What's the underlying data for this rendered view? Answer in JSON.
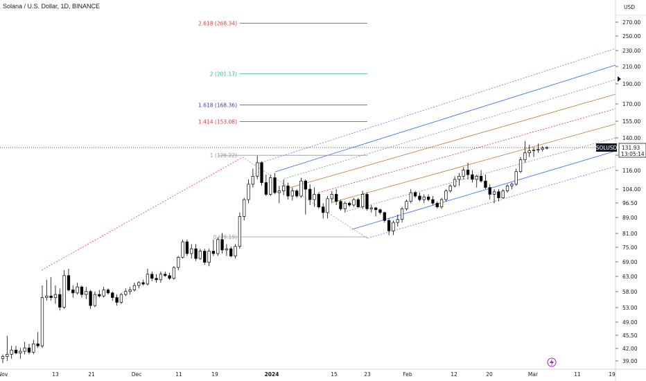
{
  "header": {
    "title": "Solana / U.S. Dollar, 1D, BINANCE"
  },
  "price_axis": {
    "currency": "USD",
    "ticks": [
      "270.00",
      "250.00",
      "230.00",
      "210.00",
      "190.00",
      "170.00",
      "155.00",
      "140.00",
      "126.00",
      "116.00",
      "104.00",
      "96.50",
      "89.00",
      "81.00",
      "75.00",
      "69.00",
      "63.00",
      "58.00",
      "53.00",
      "49.00",
      "45.50",
      "42.00",
      "39.00"
    ],
    "last_price": "131.93",
    "countdown": "13:05:14",
    "symbol": "SOLUSD"
  },
  "time_axis": {
    "labels": [
      "Nov",
      "13",
      "21",
      "Dec",
      "11",
      "19",
      "2024",
      "15",
      "23",
      "Feb",
      "12",
      "20",
      "Mar",
      "11",
      "19"
    ]
  },
  "fib_levels": [
    {
      "label": "2.618 (268.34)",
      "color": "#e53935"
    },
    {
      "label": "2 (201.17)",
      "color": "#26c281"
    },
    {
      "label": "1.618 (168.36)",
      "color": "#3f3fa0"
    },
    {
      "label": "1.414 (153.08)",
      "color": "#e53935"
    },
    {
      "label": "1 (126.22)",
      "color": "#9598a1"
    },
    {
      "label": "0 (79.19)",
      "color": "#9598a1"
    }
  ],
  "colors": {
    "bull": "#ffffff",
    "bear": "#000000",
    "channel_outer": "#7b61ff",
    "channel_red": "#f23645",
    "channel_blue": "#2962ff",
    "channel_brown": "#c07b24",
    "channel_green": "#4caf50",
    "channel_pink": "#e91e63",
    "lightning": "#9c27b0"
  },
  "icons": {
    "lightning": "lightning-icon",
    "collapse": "arrow-right-icon"
  },
  "chart_data": {
    "type": "candlestick",
    "title": "Solana / U.S. Dollar, 1D, BINANCE",
    "symbol": "SOLUSD",
    "last_price": 131.93,
    "y_scale": "log",
    "ylim": [
      37,
      300
    ],
    "x_start": "2023-11-01",
    "x_end": "2024-03-19",
    "fib_extension": {
      "level_0": 79.19,
      "level_1": 126.22,
      "level_1_414": 153.08,
      "level_1_618": 168.36,
      "level_2": 201.17,
      "level_2_618": 268.34
    },
    "candles": [
      {
        "d": "2023-11-01",
        "o": 39.5,
        "h": 40.5,
        "l": 38.5,
        "c": 40.0
      },
      {
        "d": "2023-11-02",
        "o": 40.0,
        "h": 45.0,
        "l": 39.0,
        "c": 40.5
      },
      {
        "d": "2023-11-03",
        "o": 40.5,
        "h": 42.5,
        "l": 39.5,
        "c": 41.5
      },
      {
        "d": "2023-11-04",
        "o": 41.5,
        "h": 42.5,
        "l": 40.5,
        "c": 40.8
      },
      {
        "d": "2023-11-05",
        "o": 40.8,
        "h": 42.0,
        "l": 39.5,
        "c": 41.2
      },
      {
        "d": "2023-11-06",
        "o": 41.2,
        "h": 43.5,
        "l": 40.5,
        "c": 42.0
      },
      {
        "d": "2023-11-07",
        "o": 42.0,
        "h": 43.0,
        "l": 40.5,
        "c": 41.0
      },
      {
        "d": "2023-11-08",
        "o": 41.0,
        "h": 44.0,
        "l": 40.5,
        "c": 43.0
      },
      {
        "d": "2023-11-09",
        "o": 43.0,
        "h": 46.0,
        "l": 42.0,
        "c": 42.5
      },
      {
        "d": "2023-11-10",
        "o": 42.5,
        "h": 60.0,
        "l": 42.0,
        "c": 56.0
      },
      {
        "d": "2023-11-11",
        "o": 56.0,
        "h": 62.0,
        "l": 55.0,
        "c": 56.5
      },
      {
        "d": "2023-11-12",
        "o": 56.5,
        "h": 63.0,
        "l": 55.0,
        "c": 56.0
      },
      {
        "d": "2023-11-13",
        "o": 56.0,
        "h": 60.0,
        "l": 54.0,
        "c": 57.0
      },
      {
        "d": "2023-11-14",
        "o": 57.0,
        "h": 59.0,
        "l": 52.0,
        "c": 53.0
      },
      {
        "d": "2023-11-15",
        "o": 53.0,
        "h": 65.5,
        "l": 52.5,
        "c": 63.5
      },
      {
        "d": "2023-11-16",
        "o": 63.5,
        "h": 66.0,
        "l": 58.0,
        "c": 58.5
      },
      {
        "d": "2023-11-17",
        "o": 58.5,
        "h": 60.0,
        "l": 56.0,
        "c": 57.5
      },
      {
        "d": "2023-11-18",
        "o": 57.5,
        "h": 61.0,
        "l": 57.0,
        "c": 59.5
      },
      {
        "d": "2023-11-19",
        "o": 59.5,
        "h": 60.0,
        "l": 56.0,
        "c": 57.0
      },
      {
        "d": "2023-11-20",
        "o": 57.0,
        "h": 59.5,
        "l": 55.5,
        "c": 58.0
      },
      {
        "d": "2023-11-21",
        "o": 58.0,
        "h": 58.5,
        "l": 52.5,
        "c": 53.5
      },
      {
        "d": "2023-11-22",
        "o": 53.5,
        "h": 58.0,
        "l": 53.0,
        "c": 57.0
      },
      {
        "d": "2023-11-23",
        "o": 57.0,
        "h": 58.5,
        "l": 56.0,
        "c": 56.5
      },
      {
        "d": "2023-11-24",
        "o": 56.5,
        "h": 59.5,
        "l": 56.0,
        "c": 58.5
      },
      {
        "d": "2023-11-25",
        "o": 58.5,
        "h": 59.0,
        "l": 57.0,
        "c": 57.5
      },
      {
        "d": "2023-11-26",
        "o": 57.5,
        "h": 58.0,
        "l": 55.0,
        "c": 56.0
      },
      {
        "d": "2023-11-27",
        "o": 56.0,
        "h": 57.0,
        "l": 53.5,
        "c": 54.5
      },
      {
        "d": "2023-11-28",
        "o": 54.5,
        "h": 57.5,
        "l": 54.0,
        "c": 57.0
      },
      {
        "d": "2023-11-29",
        "o": 57.0,
        "h": 59.0,
        "l": 56.5,
        "c": 58.0
      },
      {
        "d": "2023-11-30",
        "o": 58.0,
        "h": 59.5,
        "l": 57.0,
        "c": 58.5
      },
      {
        "d": "2023-12-01",
        "o": 58.5,
        "h": 61.0,
        "l": 58.0,
        "c": 60.0
      },
      {
        "d": "2023-12-02",
        "o": 60.0,
        "h": 61.5,
        "l": 59.0,
        "c": 61.0
      },
      {
        "d": "2023-12-03",
        "o": 61.0,
        "h": 62.0,
        "l": 60.0,
        "c": 60.5
      },
      {
        "d": "2023-12-04",
        "o": 60.5,
        "h": 66.0,
        "l": 60.0,
        "c": 64.0
      },
      {
        "d": "2023-12-05",
        "o": 64.0,
        "h": 65.0,
        "l": 61.5,
        "c": 62.5
      },
      {
        "d": "2023-12-06",
        "o": 62.5,
        "h": 64.0,
        "l": 61.0,
        "c": 62.0
      },
      {
        "d": "2023-12-07",
        "o": 62.0,
        "h": 65.0,
        "l": 61.0,
        "c": 64.0
      },
      {
        "d": "2023-12-08",
        "o": 64.0,
        "h": 65.0,
        "l": 63.0,
        "c": 63.5
      },
      {
        "d": "2023-12-09",
        "o": 63.5,
        "h": 64.5,
        "l": 62.0,
        "c": 62.5
      },
      {
        "d": "2023-12-10",
        "o": 62.5,
        "h": 67.0,
        "l": 62.0,
        "c": 66.5
      },
      {
        "d": "2023-12-11",
        "o": 66.5,
        "h": 71.0,
        "l": 65.5,
        "c": 70.5
      },
      {
        "d": "2023-12-12",
        "o": 70.5,
        "h": 78.0,
        "l": 70.0,
        "c": 77.0
      },
      {
        "d": "2023-12-13",
        "o": 77.0,
        "h": 78.0,
        "l": 71.0,
        "c": 72.0
      },
      {
        "d": "2023-12-14",
        "o": 72.0,
        "h": 76.0,
        "l": 70.0,
        "c": 74.0
      },
      {
        "d": "2023-12-15",
        "o": 74.0,
        "h": 76.0,
        "l": 69.0,
        "c": 70.0
      },
      {
        "d": "2023-12-16",
        "o": 70.0,
        "h": 74.0,
        "l": 69.5,
        "c": 73.0
      },
      {
        "d": "2023-12-17",
        "o": 73.0,
        "h": 74.0,
        "l": 67.5,
        "c": 68.5
      },
      {
        "d": "2023-12-18",
        "o": 68.5,
        "h": 74.0,
        "l": 67.0,
        "c": 73.0
      },
      {
        "d": "2023-12-19",
        "o": 73.0,
        "h": 78.0,
        "l": 71.0,
        "c": 72.0
      },
      {
        "d": "2023-12-20",
        "o": 72.0,
        "h": 79.0,
        "l": 71.0,
        "c": 78.0
      },
      {
        "d": "2023-12-21",
        "o": 78.0,
        "h": 81.0,
        "l": 72.0,
        "c": 73.5
      },
      {
        "d": "2023-12-22",
        "o": 73.5,
        "h": 76.0,
        "l": 71.0,
        "c": 74.0
      },
      {
        "d": "2023-12-23",
        "o": 74.0,
        "h": 75.0,
        "l": 70.5,
        "c": 71.0
      },
      {
        "d": "2023-12-24",
        "o": 71.0,
        "h": 76.0,
        "l": 70.0,
        "c": 75.0
      },
      {
        "d": "2023-12-25",
        "o": 75.0,
        "h": 91.0,
        "l": 74.0,
        "c": 89.0
      },
      {
        "d": "2023-12-26",
        "o": 89.0,
        "h": 99.0,
        "l": 87.0,
        "c": 98.0
      },
      {
        "d": "2023-12-27",
        "o": 98.0,
        "h": 110.0,
        "l": 96.0,
        "c": 107.0
      },
      {
        "d": "2023-12-28",
        "o": 107.0,
        "h": 117.0,
        "l": 105.0,
        "c": 112.0
      },
      {
        "d": "2023-12-29",
        "o": 112.0,
        "h": 126.0,
        "l": 110.0,
        "c": 121.0
      },
      {
        "d": "2023-12-30",
        "o": 121.0,
        "h": 122.0,
        "l": 106.0,
        "c": 108.0
      },
      {
        "d": "2023-12-31",
        "o": 108.0,
        "h": 113.0,
        "l": 100.0,
        "c": 101.0
      },
      {
        "d": "2024-01-01",
        "o": 101.0,
        "h": 113.0,
        "l": 100.0,
        "c": 111.0
      },
      {
        "d": "2024-01-02",
        "o": 111.0,
        "h": 114.0,
        "l": 101.0,
        "c": 102.0
      },
      {
        "d": "2024-01-03",
        "o": 102.0,
        "h": 106.0,
        "l": 96.0,
        "c": 103.0
      },
      {
        "d": "2024-01-04",
        "o": 103.0,
        "h": 110.0,
        "l": 100.5,
        "c": 106.0
      },
      {
        "d": "2024-01-05",
        "o": 106.0,
        "h": 108.0,
        "l": 98.0,
        "c": 100.0
      },
      {
        "d": "2024-01-06",
        "o": 100.0,
        "h": 105.0,
        "l": 97.5,
        "c": 103.0
      },
      {
        "d": "2024-01-07",
        "o": 103.0,
        "h": 104.0,
        "l": 99.0,
        "c": 100.0
      },
      {
        "d": "2024-01-08",
        "o": 100.0,
        "h": 111.0,
        "l": 99.0,
        "c": 109.0
      },
      {
        "d": "2024-01-09",
        "o": 109.0,
        "h": 110.0,
        "l": 90.0,
        "c": 104.0
      },
      {
        "d": "2024-01-10",
        "o": 104.0,
        "h": 107.0,
        "l": 95.0,
        "c": 98.0
      },
      {
        "d": "2024-01-11",
        "o": 98.0,
        "h": 105.0,
        "l": 94.0,
        "c": 101.0
      },
      {
        "d": "2024-01-12",
        "o": 101.0,
        "h": 102.0,
        "l": 93.0,
        "c": 94.0
      },
      {
        "d": "2024-01-13",
        "o": 94.0,
        "h": 96.0,
        "l": 88.0,
        "c": 91.0
      },
      {
        "d": "2024-01-14",
        "o": 91.0,
        "h": 100.0,
        "l": 88.0,
        "c": 98.5
      },
      {
        "d": "2024-01-15",
        "o": 98.5,
        "h": 103.0,
        "l": 96.0,
        "c": 101.0
      },
      {
        "d": "2024-01-16",
        "o": 101.0,
        "h": 104.0,
        "l": 95.0,
        "c": 97.0
      },
      {
        "d": "2024-01-17",
        "o": 97.0,
        "h": 98.0,
        "l": 92.0,
        "c": 93.0
      },
      {
        "d": "2024-01-18",
        "o": 93.0,
        "h": 97.0,
        "l": 91.0,
        "c": 96.0
      },
      {
        "d": "2024-01-19",
        "o": 96.0,
        "h": 97.0,
        "l": 94.0,
        "c": 95.0
      },
      {
        "d": "2024-01-20",
        "o": 95.0,
        "h": 99.0,
        "l": 94.0,
        "c": 98.0
      },
      {
        "d": "2024-01-21",
        "o": 98.0,
        "h": 99.0,
        "l": 93.5,
        "c": 94.0
      },
      {
        "d": "2024-01-22",
        "o": 94.0,
        "h": 103.0,
        "l": 93.0,
        "c": 101.0
      },
      {
        "d": "2024-01-23",
        "o": 101.0,
        "h": 102.0,
        "l": 92.0,
        "c": 93.0
      },
      {
        "d": "2024-01-24",
        "o": 93.0,
        "h": 95.0,
        "l": 91.0,
        "c": 93.5
      },
      {
        "d": "2024-01-25",
        "o": 93.5,
        "h": 94.0,
        "l": 89.0,
        "c": 92.5
      },
      {
        "d": "2024-01-26",
        "o": 92.5,
        "h": 93.0,
        "l": 90.0,
        "c": 91.0
      },
      {
        "d": "2024-01-27",
        "o": 91.0,
        "h": 91.5,
        "l": 86.0,
        "c": 87.0
      },
      {
        "d": "2024-01-28",
        "o": 87.0,
        "h": 88.0,
        "l": 80.0,
        "c": 82.0
      },
      {
        "d": "2024-01-29",
        "o": 82.0,
        "h": 87.0,
        "l": 80.0,
        "c": 86.0
      },
      {
        "d": "2024-01-30",
        "o": 86.0,
        "h": 90.0,
        "l": 84.0,
        "c": 87.5
      },
      {
        "d": "2024-01-31",
        "o": 87.5,
        "h": 94.0,
        "l": 86.0,
        "c": 93.0
      },
      {
        "d": "2024-02-01",
        "o": 93.0,
        "h": 98.0,
        "l": 92.0,
        "c": 97.0
      },
      {
        "d": "2024-02-02",
        "o": 97.0,
        "h": 104.0,
        "l": 96.0,
        "c": 102.0
      },
      {
        "d": "2024-02-03",
        "o": 102.0,
        "h": 103.0,
        "l": 99.0,
        "c": 100.0
      },
      {
        "d": "2024-02-04",
        "o": 100.0,
        "h": 102.0,
        "l": 97.0,
        "c": 98.0
      },
      {
        "d": "2024-02-05",
        "o": 98.0,
        "h": 101.0,
        "l": 96.0,
        "c": 99.5
      },
      {
        "d": "2024-02-06",
        "o": 99.5,
        "h": 101.0,
        "l": 97.0,
        "c": 98.0
      },
      {
        "d": "2024-02-07",
        "o": 98.0,
        "h": 100.0,
        "l": 95.0,
        "c": 96.0
      },
      {
        "d": "2024-02-08",
        "o": 96.0,
        "h": 97.0,
        "l": 93.0,
        "c": 94.0
      },
      {
        "d": "2024-02-09",
        "o": 94.0,
        "h": 99.0,
        "l": 93.0,
        "c": 98.0
      },
      {
        "d": "2024-02-10",
        "o": 98.0,
        "h": 104.0,
        "l": 97.0,
        "c": 103.0
      },
      {
        "d": "2024-02-11",
        "o": 103.0,
        "h": 107.0,
        "l": 102.0,
        "c": 106.0
      },
      {
        "d": "2024-02-12",
        "o": 106.0,
        "h": 112.0,
        "l": 105.0,
        "c": 110.0
      },
      {
        "d": "2024-02-13",
        "o": 110.0,
        "h": 114.0,
        "l": 106.0,
        "c": 112.0
      },
      {
        "d": "2024-02-14",
        "o": 112.0,
        "h": 118.0,
        "l": 110.0,
        "c": 116.0
      },
      {
        "d": "2024-02-15",
        "o": 116.0,
        "h": 121.0,
        "l": 110.0,
        "c": 113.0
      },
      {
        "d": "2024-02-16",
        "o": 113.0,
        "h": 116.0,
        "l": 108.0,
        "c": 110.0
      },
      {
        "d": "2024-02-17",
        "o": 110.0,
        "h": 113.0,
        "l": 105.0,
        "c": 112.0
      },
      {
        "d": "2024-02-18",
        "o": 112.0,
        "h": 116.0,
        "l": 108.0,
        "c": 109.0
      },
      {
        "d": "2024-02-19",
        "o": 109.0,
        "h": 113.0,
        "l": 104.0,
        "c": 105.0
      },
      {
        "d": "2024-02-20",
        "o": 105.0,
        "h": 107.0,
        "l": 98.0,
        "c": 101.0
      },
      {
        "d": "2024-02-21",
        "o": 101.0,
        "h": 104.0,
        "l": 96.0,
        "c": 102.5
      },
      {
        "d": "2024-02-22",
        "o": 102.5,
        "h": 104.0,
        "l": 97.0,
        "c": 99.0
      },
      {
        "d": "2024-02-23",
        "o": 99.0,
        "h": 104.0,
        "l": 98.5,
        "c": 103.0
      },
      {
        "d": "2024-02-24",
        "o": 103.0,
        "h": 107.0,
        "l": 102.0,
        "c": 106.0
      },
      {
        "d": "2024-02-25",
        "o": 106.0,
        "h": 108.0,
        "l": 104.0,
        "c": 107.0
      },
      {
        "d": "2024-02-26",
        "o": 107.0,
        "h": 117.0,
        "l": 106.0,
        "c": 115.0
      },
      {
        "d": "2024-02-27",
        "o": 115.0,
        "h": 125.0,
        "l": 114.0,
        "c": 123.0
      },
      {
        "d": "2024-02-28",
        "o": 123.0,
        "h": 137.0,
        "l": 121.0,
        "c": 128.0
      },
      {
        "d": "2024-02-29",
        "o": 128.0,
        "h": 134.0,
        "l": 125.0,
        "c": 129.5
      },
      {
        "d": "2024-03-01",
        "o": 129.5,
        "h": 132.0,
        "l": 125.0,
        "c": 130.0
      },
      {
        "d": "2024-03-02",
        "o": 130.0,
        "h": 135.0,
        "l": 128.0,
        "c": 130.5
      },
      {
        "d": "2024-03-03",
        "o": 130.5,
        "h": 133.0,
        "l": 129.0,
        "c": 131.5
      },
      {
        "d": "2024-03-04",
        "o": 131.5,
        "h": 133.0,
        "l": 130.5,
        "c": 131.93
      }
    ]
  }
}
